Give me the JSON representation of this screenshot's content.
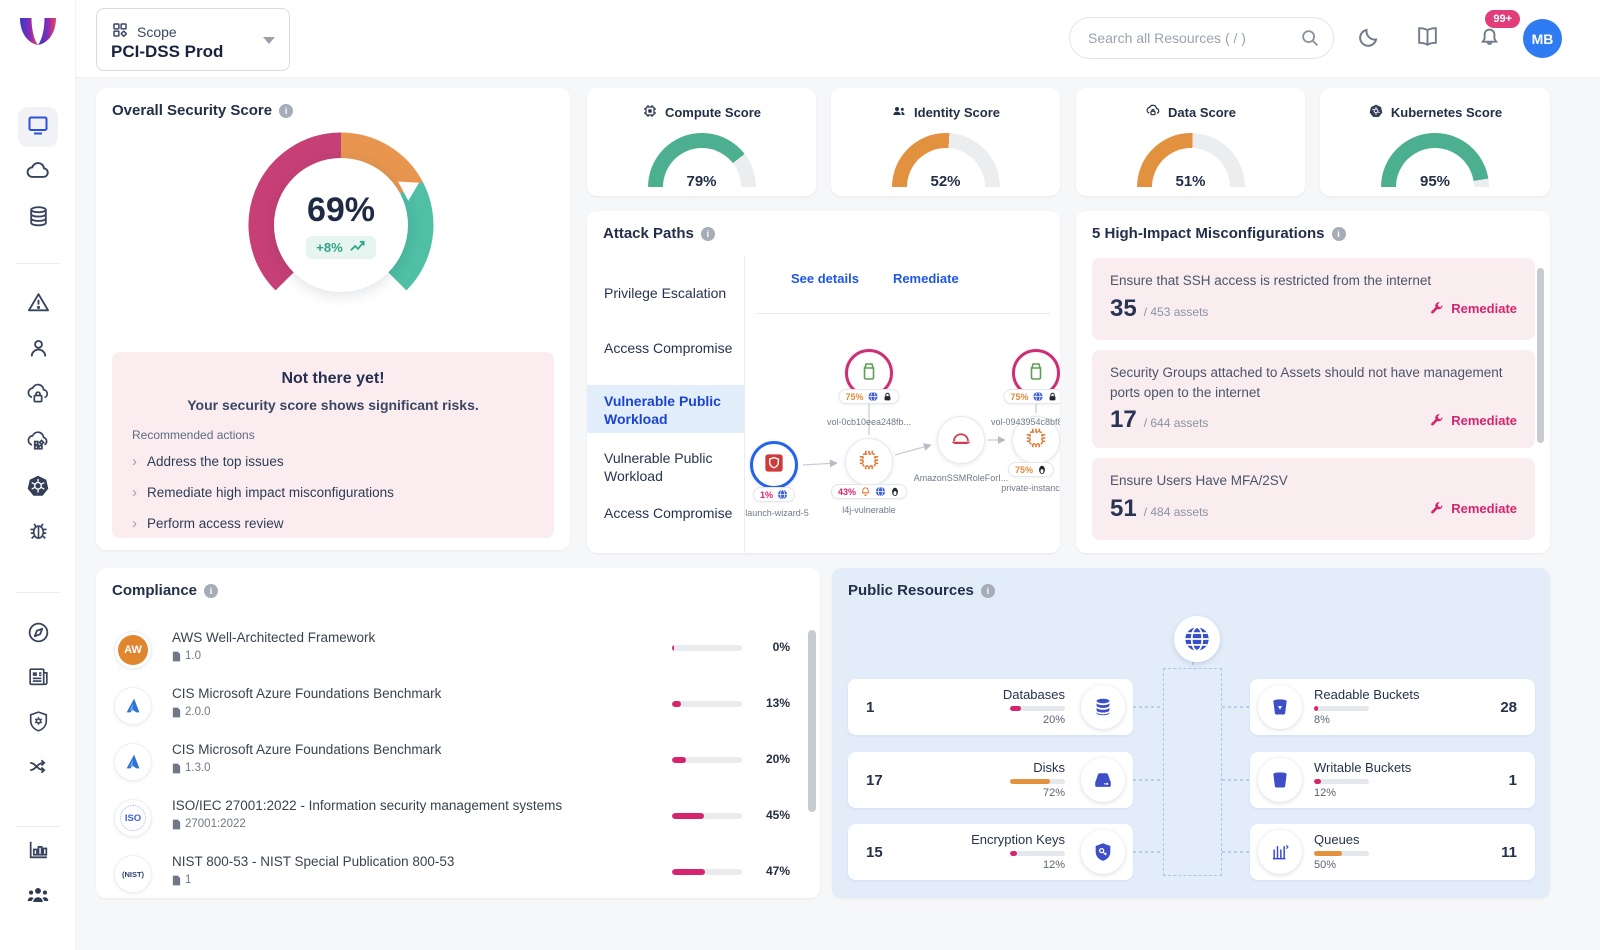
{
  "colors": {
    "accent_pink": "#D6246E",
    "accent_orange": "#E2913F",
    "accent_green": "#4CAF8F",
    "accent_blue": "#1E56E3",
    "panel_blue": "#E3EDFA"
  },
  "topbar": {
    "scope_label": "Scope",
    "scope_value": "PCI-DSS Prod",
    "search_placeholder": "Search all Resources ( / )",
    "notification_count": "99+",
    "avatar": "MB"
  },
  "overall": {
    "title": "Overall Security Score",
    "score": "69%",
    "delta": "+8%",
    "banner_title": "Not there yet!",
    "banner_subtitle": "Your security score shows significant risks.",
    "recommended_label": "Recommended actions",
    "actions": [
      "Address the top issues",
      "Remediate high impact misconfigurations",
      "Perform access review"
    ]
  },
  "score_cards": [
    {
      "label": "Compute Score",
      "value": 79,
      "display": "79%",
      "color": "#4CAF8F"
    },
    {
      "label": "Identity Score",
      "value": 52,
      "display": "52%",
      "color": "#E2913F"
    },
    {
      "label": "Data Score",
      "value": 51,
      "display": "51%",
      "color": "#E2913F"
    },
    {
      "label": "Kubernetes Score",
      "value": 95,
      "display": "95%",
      "color": "#4CAF8F"
    }
  ],
  "attack_paths": {
    "title": "Attack Paths",
    "items": [
      "Privilege Escalation",
      "Access Compromise",
      "Vulnerable Public Workload",
      "Vulnerable Public Workload",
      "Access Compromise"
    ],
    "selected_index": 2,
    "see_details": "See details",
    "remediate": "Remediate",
    "nodes": {
      "vol1": {
        "label": "vol-0cb10eea248fb...",
        "pct": "75%"
      },
      "vol2": {
        "label": "vol-0943954c8bf89...",
        "pct": "75%"
      },
      "launch": {
        "label": "launch-wizard-5",
        "pct": "1%"
      },
      "l4j": {
        "label": "l4j-vulnerable",
        "pct": "43%"
      },
      "ssm": {
        "label": "AmazonSSMRoleForI..."
      },
      "pi": {
        "label": "private-instance",
        "pct": "75%"
      }
    }
  },
  "misconfigs": {
    "title": "5 High-Impact Misconfigurations",
    "remediate_label": "Remediate",
    "items": [
      {
        "title": "Ensure that SSH access is restricted from the internet",
        "count": "35",
        "total": "/ 453 assets"
      },
      {
        "title": "Security Groups attached to Assets should not have management ports open to the internet",
        "count": "17",
        "total": "/ 644 assets"
      },
      {
        "title": "Ensure Users Have MFA/2SV",
        "count": "51",
        "total": "/ 484 assets"
      }
    ]
  },
  "compliance": {
    "title": "Compliance",
    "items": [
      {
        "name": "AWS Well-Architected Framework",
        "version": "1.0",
        "pct": 3,
        "display": "0%",
        "icon_text": "AW"
      },
      {
        "name": "CIS Microsoft Azure Foundations Benchmark",
        "version": "2.0.0",
        "pct": 13,
        "display": "13%",
        "icon_text": ""
      },
      {
        "name": "CIS Microsoft Azure Foundations Benchmark",
        "version": "1.3.0",
        "pct": 20,
        "display": "20%",
        "icon_text": ""
      },
      {
        "name": "ISO/IEC 27001:2022 - Information security management systems",
        "version": "27001:2022",
        "pct": 45,
        "display": "45%",
        "icon_text": "ISO"
      },
      {
        "name": "NIST 800-53 - NIST Special Publication 800-53",
        "version": "1",
        "pct": 47,
        "display": "47%",
        "icon_text": "(NIST)"
      }
    ]
  },
  "public_resources": {
    "title": "Public Resources",
    "left": [
      {
        "count": "1",
        "label": "Databases",
        "pct": 20,
        "display": "20%"
      },
      {
        "count": "17",
        "label": "Disks",
        "pct": 72,
        "display": "72%"
      },
      {
        "count": "15",
        "label": "Encryption Keys",
        "pct": 12,
        "display": "12%"
      }
    ],
    "right": [
      {
        "count": "28",
        "label": "Readable Buckets",
        "pct": 8,
        "display": "8%"
      },
      {
        "count": "1",
        "label": "Writable Buckets",
        "pct": 12,
        "display": "12%"
      },
      {
        "count": "11",
        "label": "Queues",
        "pct": 50,
        "display": "50%"
      }
    ]
  }
}
